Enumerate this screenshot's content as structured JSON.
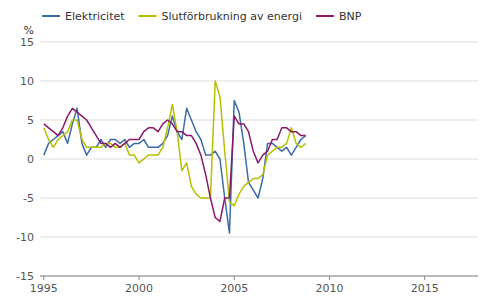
{
  "chart_data": {
    "type": "line",
    "y_label": "%",
    "x": [
      1995,
      1995.25,
      1995.5,
      1995.75,
      1996,
      1996.25,
      1996.5,
      1996.75,
      1997,
      1997.25,
      1997.5,
      1997.75,
      1998,
      1998.25,
      1998.5,
      1998.75,
      1999,
      1999.25,
      1999.5,
      1999.75,
      2000,
      2000.25,
      2000.5,
      2000.75,
      2001,
      2001.25,
      2001.5,
      2001.75,
      2002,
      2002.25,
      2002.5,
      2002.75,
      2003,
      2003.25,
      2003.5,
      2003.75,
      2004,
      2004.25,
      2004.5,
      2004.75,
      2005,
      2005.25,
      2005.5,
      2005.75,
      2006,
      2006.25,
      2006.5,
      2006.75,
      2007,
      2007.25,
      2007.5,
      2007.75,
      2008,
      2008.25,
      2008.5,
      2008.75
    ],
    "series": [
      {
        "name": "Elektricitet",
        "color": "#3c6ca8",
        "values": [
          0.5,
          2.0,
          2.5,
          3.0,
          3.5,
          2.0,
          4.5,
          6.5,
          2.0,
          0.5,
          1.5,
          1.5,
          2.5,
          1.5,
          2.5,
          2.5,
          2.0,
          2.5,
          1.5,
          2.0,
          2.0,
          2.5,
          1.5,
          1.5,
          1.5,
          2.0,
          3.0,
          5.5,
          3.5,
          2.5,
          6.5,
          5.0,
          3.5,
          2.5,
          0.5,
          0.5,
          1.0,
          0.0,
          -5.0,
          -9.5,
          7.5,
          6.0,
          2.0,
          -3.0,
          -4.0,
          -5.0,
          -2.5,
          2.0,
          2.0,
          1.5,
          1.0,
          1.5,
          0.5,
          1.5,
          2.5,
          3.0
        ]
      },
      {
        "name": "Slutförbrukning av energi",
        "color": "#b5c000",
        "values": [
          4.0,
          2.5,
          1.5,
          2.5,
          3.0,
          3.5,
          5.0,
          5.0,
          2.5,
          1.5,
          1.5,
          1.5,
          1.5,
          2.0,
          2.0,
          1.5,
          1.5,
          2.0,
          0.5,
          0.5,
          -0.5,
          0.0,
          0.5,
          0.5,
          0.5,
          1.5,
          4.0,
          7.0,
          3.5,
          -1.5,
          -0.5,
          -3.5,
          -4.5,
          -5.0,
          -5.0,
          -5.0,
          10.0,
          8.0,
          1.0,
          -5.5,
          -6.0,
          -4.5,
          -3.5,
          -3.0,
          -2.5,
          -2.5,
          -2.0,
          0.5,
          1.0,
          1.5,
          1.5,
          2.0,
          4.0,
          2.0,
          1.5,
          2.0
        ]
      },
      {
        "name": "BNP",
        "color": "#8b1a6b",
        "values": [
          4.5,
          4.0,
          3.5,
          3.0,
          4.0,
          5.5,
          6.5,
          6.0,
          5.5,
          5.0,
          4.0,
          3.0,
          2.0,
          2.0,
          1.5,
          2.0,
          1.5,
          2.0,
          2.5,
          2.5,
          2.5,
          3.5,
          4.0,
          4.0,
          3.5,
          4.5,
          5.0,
          4.5,
          3.5,
          3.5,
          3.0,
          3.0,
          2.0,
          0.5,
          -2.0,
          -5.0,
          -7.5,
          -8.0,
          -5.0,
          -5.0,
          5.5,
          4.5,
          4.5,
          3.5,
          1.0,
          -0.5,
          0.5,
          1.0,
          2.5,
          2.5,
          4.0,
          4.0,
          3.5,
          3.5,
          3.0,
          3.0
        ]
      }
    ],
    "xlim": [
      1994.8,
      2017.8
    ],
    "xticks": [
      1995,
      2000,
      2005,
      2010,
      2015
    ],
    "ylim": [
      -15,
      15
    ],
    "yticks": [
      -15,
      -10,
      -5,
      0,
      5,
      10,
      15
    ],
    "grid": true,
    "legend": "upper left"
  }
}
